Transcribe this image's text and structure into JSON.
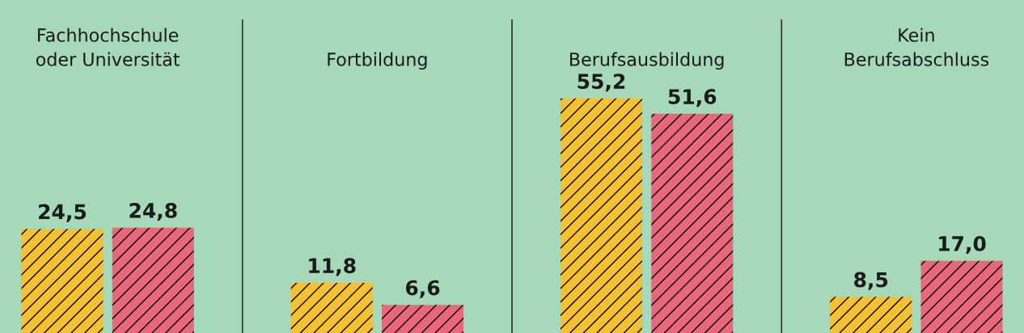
{
  "chart_data": {
    "type": "bar",
    "categories": [
      "Fachhochschule\noder Universität",
      "Fortbildung",
      "Berufsausbildung",
      "Kein\nBerufsabschluss"
    ],
    "series": [
      {
        "color": "#f5c130",
        "values": [
          24.5,
          11.8,
          55.2,
          8.5
        ],
        "value_labels": [
          "24,5",
          "11,8",
          "55,2",
          "8,5"
        ]
      },
      {
        "color": "#e8677a",
        "values": [
          24.8,
          6.6,
          51.6,
          17.0
        ],
        "value_labels": [
          "24,8",
          "6,6",
          "51,6",
          "17,0"
        ]
      }
    ],
    "grid": "x",
    "legend": false
  }
}
